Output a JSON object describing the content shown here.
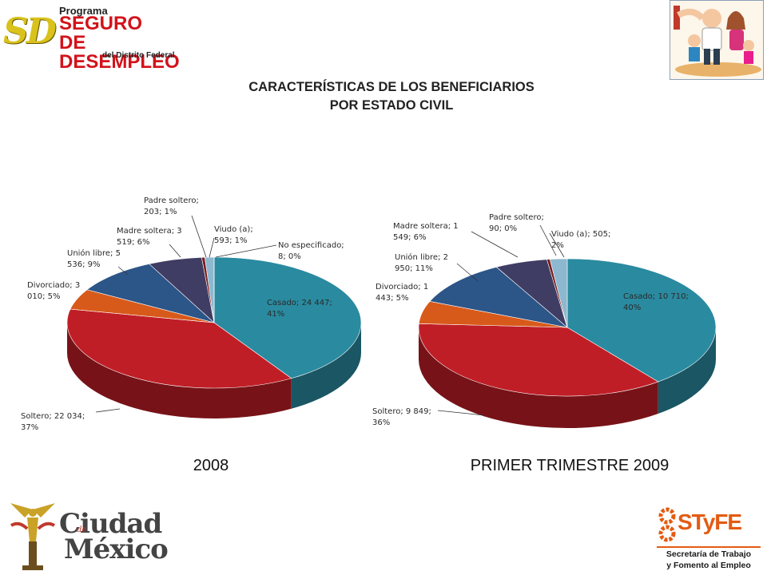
{
  "header": {
    "logo_top": {
      "mark": "SD",
      "line1": "Programa",
      "line2": "SEGURO",
      "line3": "DE DESEMPLEO",
      "line4": "del Distrito Federal"
    },
    "title_line1": "CARACTERÍSTICAS DE LOS BENEFICIARIOS",
    "title_line2": "POR ESTADO CIVIL",
    "family_image_icon": "family-illustration-icon"
  },
  "footer": {
    "logo_left": {
      "word1": "Ciudad",
      "word_small": "de",
      "word2": "México",
      "icon": "angel-monument-icon"
    },
    "logo_right": {
      "brand": "STyFE",
      "sub1": "Secretaría de Trabajo",
      "sub2": "y Fomento al Empleo",
      "icon": "cogwheel-icon"
    }
  },
  "chart_data": [
    {
      "type": "pie",
      "caption": "2008",
      "slices": [
        {
          "label": "Casado",
          "value": 24447,
          "percent": 41,
          "color": "#2a8aa0",
          "label_lines": [
            "Casado; 24 447;",
            "41%"
          ]
        },
        {
          "label": "Soltero",
          "value": 22034,
          "percent": 37,
          "color": "#c01e26",
          "label_lines": [
            "Soltero; 22 034;",
            "37%"
          ]
        },
        {
          "label": "Divorciado",
          "value": 3010,
          "percent": 5,
          "color": "#d85a1a",
          "label_lines": [
            "Divorciado; 3",
            "010; 5%"
          ]
        },
        {
          "label": "Unión libre",
          "value": 5536,
          "percent": 9,
          "color": "#2c5588",
          "label_lines": [
            "Unión libre; 5",
            "536; 9%"
          ]
        },
        {
          "label": "Madre soltera",
          "value": 3519,
          "percent": 6,
          "color": "#3f3d63",
          "label_lines": [
            "Madre soltera; 3",
            "519; 6%"
          ]
        },
        {
          "label": "Padre soltero",
          "value": 203,
          "percent": 1,
          "color": "#7a1c1c",
          "label_lines": [
            "Padre soltero;",
            "203; 1%"
          ]
        },
        {
          "label": "Viudo (a)",
          "value": 593,
          "percent": 1,
          "color": "#8db8cf",
          "label_lines": [
            "Viudo (a);",
            "593; 1%"
          ]
        },
        {
          "label": "No especificado",
          "value": 8,
          "percent": 0,
          "color": "#b0c4d8",
          "label_lines": [
            "No especificado;",
            "8; 0%"
          ]
        }
      ]
    },
    {
      "type": "pie",
      "caption": "PRIMER TRIMESTRE 2009",
      "slices": [
        {
          "label": "Casado",
          "value": 10710,
          "percent": 40,
          "color": "#2a8aa0",
          "label_lines": [
            "Casado; 10 710;",
            "40%"
          ]
        },
        {
          "label": "Soltero",
          "value": 9849,
          "percent": 36,
          "color": "#c01e26",
          "label_lines": [
            "Soltero; 9 849;",
            "36%"
          ]
        },
        {
          "label": "Divorciado",
          "value": 1443,
          "percent": 5,
          "color": "#d85a1a",
          "label_lines": [
            "Divorciado; 1",
            "443; 5%"
          ]
        },
        {
          "label": "Unión libre",
          "value": 2950,
          "percent": 11,
          "color": "#2c5588",
          "label_lines": [
            "Unión libre; 2",
            "950; 11%"
          ]
        },
        {
          "label": "Madre soltera",
          "value": 1549,
          "percent": 6,
          "color": "#3f3d63",
          "label_lines": [
            "Madre soltera; 1",
            "549; 6%"
          ]
        },
        {
          "label": "Padre soltero",
          "value": 90,
          "percent": 0,
          "color": "#7a1c1c",
          "label_lines": [
            "Padre soltero;",
            "90; 0%"
          ]
        },
        {
          "label": "Viudo (a)",
          "value": 505,
          "percent": 2,
          "color": "#8db8cf",
          "label_lines": [
            "Viudo (a); 505;",
            "2%"
          ]
        }
      ]
    }
  ]
}
